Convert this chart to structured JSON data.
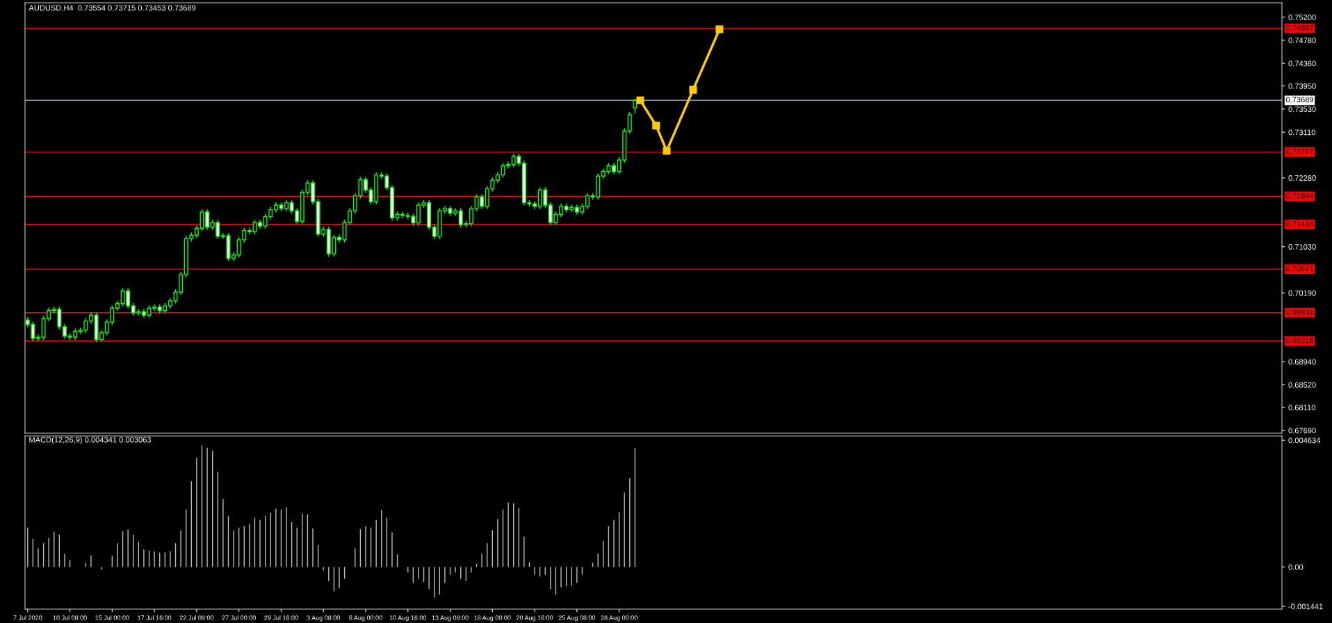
{
  "chart_data": [
    {
      "type": "candlestick",
      "title": "AUDUSD,H4  0.73554 0.73715 0.73453 0.73689",
      "grid": false,
      "color": "#00ff00",
      "categories": [
        null,
        null,
        null,
        null,
        null,
        null,
        null,
        null,
        null,
        null,
        null,
        null,
        null,
        null,
        null,
        null,
        null,
        null,
        null,
        null,
        null,
        null,
        null,
        null,
        null,
        null,
        null,
        null,
        null,
        null,
        null,
        null,
        null,
        null,
        null,
        null,
        null,
        null,
        null,
        null,
        null,
        null,
        null,
        null,
        null,
        null,
        null,
        null,
        null,
        null,
        null,
        null,
        null,
        null,
        null,
        null,
        null,
        null,
        null,
        null,
        null,
        null,
        null,
        null,
        null,
        null,
        null,
        null,
        null,
        null,
        null,
        null,
        null,
        null,
        null,
        null,
        null,
        null,
        null,
        null,
        null,
        null,
        null,
        null,
        null,
        null,
        null,
        null,
        null,
        null,
        null,
        null,
        null,
        null,
        null,
        null,
        null,
        null,
        null,
        null,
        null,
        null,
        null,
        null,
        null,
        null,
        null,
        null,
        null,
        null,
        null,
        null,
        null,
        null,
        null,
        null,
        null,
        null,
        null,
        null,
        null,
        null,
        null,
        null,
        null,
        null,
        null,
        null,
        null,
        null,
        null,
        null,
        null,
        null,
        null,
        null,
        null,
        null,
        null,
        null,
        null,
        null,
        null,
        null,
        null,
        null,
        null,
        null,
        null,
        null,
        null,
        null,
        null,
        null,
        null,
        null,
        null,
        null,
        null,
        null,
        null,
        null,
        null,
        null,
        null,
        null,
        null,
        null,
        null,
        null,
        null,
        null,
        null,
        null,
        null,
        null,
        null,
        null,
        null,
        null,
        null,
        null,
        null,
        null,
        null,
        null,
        null,
        null,
        null,
        null,
        null,
        null,
        null,
        null,
        null,
        null,
        null,
        null,
        null,
        null,
        null,
        null,
        null,
        null,
        null,
        null,
        null,
        null,
        null,
        null,
        null,
        null,
        null,
        null,
        null,
        null,
        null,
        null,
        null,
        null,
        null,
        null,
        null,
        null,
        null,
        null,
        null,
        null,
        null,
        null,
        null,
        null,
        null,
        null,
        null,
        null,
        null,
        null
      ],
      "ohlc": [
        [
          0.697,
          0.6975,
          0.69568,
          0.69618
        ],
        [
          0.69618,
          0.69668,
          0.69315,
          0.69365
        ],
        [
          0.69365,
          0.69436,
          0.69315,
          0.69386
        ],
        [
          0.69386,
          0.69773,
          0.69336,
          0.69723
        ],
        [
          0.69723,
          0.69921,
          0.69673,
          0.69871
        ],
        [
          0.69871,
          0.69942,
          0.69821,
          0.69892
        ],
        [
          0.69892,
          0.69942,
          0.69526,
          0.69576
        ],
        [
          0.69576,
          0.69626,
          0.69357,
          0.69407
        ],
        [
          0.69407,
          0.69457,
          0.69336,
          0.69386
        ],
        [
          0.69386,
          0.69542,
          0.69336,
          0.69492
        ],
        [
          0.69492,
          0.69563,
          0.69442,
          0.69513
        ],
        [
          0.69513,
          0.69731,
          0.69463,
          0.69681
        ],
        [
          0.69681,
          0.69836,
          0.69631,
          0.69786
        ],
        [
          0.69786,
          0.69836,
          0.69294,
          0.69344
        ],
        [
          0.69344,
          0.69521,
          0.69294,
          0.69471
        ],
        [
          0.69471,
          0.6971,
          0.69421,
          0.6966
        ],
        [
          0.6966,
          0.69963,
          0.6961,
          0.69913
        ],
        [
          0.69913,
          0.70047,
          0.69863,
          0.69997
        ],
        [
          0.69997,
          0.70278,
          0.69947,
          0.70228
        ],
        [
          0.70228,
          0.70278,
          0.69905,
          0.69955
        ],
        [
          0.69955,
          0.70005,
          0.69778,
          0.69828
        ],
        [
          0.69828,
          0.69899,
          0.69778,
          0.69849
        ],
        [
          0.69849,
          0.69899,
          0.69736,
          0.69786
        ],
        [
          0.69786,
          0.69963,
          0.69736,
          0.69913
        ],
        [
          0.69913,
          0.69984,
          0.69863,
          0.69934
        ],
        [
          0.69934,
          0.69984,
          0.69821,
          0.69871
        ],
        [
          0.69871,
          0.70005,
          0.69821,
          0.69955
        ],
        [
          0.69955,
          0.70097,
          0.69905,
          0.70047
        ],
        [
          0.70047,
          0.70257,
          0.69997,
          0.70207
        ],
        [
          0.70207,
          0.70573,
          0.70157,
          0.70523
        ],
        [
          0.70523,
          0.71226,
          0.70473,
          0.71176
        ],
        [
          0.71176,
          0.71289,
          0.71126,
          0.71239
        ],
        [
          0.71239,
          0.71415,
          0.71189,
          0.71365
        ],
        [
          0.71365,
          0.7171,
          0.71315,
          0.7166
        ],
        [
          0.7166,
          0.7171,
          0.71336,
          0.71386
        ],
        [
          0.71386,
          0.7152,
          0.71336,
          0.7147
        ],
        [
          0.7147,
          0.7152,
          0.71168,
          0.71218
        ],
        [
          0.71218,
          0.7128,
          0.71168,
          0.7123
        ],
        [
          0.7123,
          0.7128,
          0.70768,
          0.70818
        ],
        [
          0.70818,
          0.70931,
          0.70768,
          0.70881
        ],
        [
          0.70881,
          0.71205,
          0.70831,
          0.71155
        ],
        [
          0.71155,
          0.71373,
          0.71105,
          0.71323
        ],
        [
          0.71323,
          0.71373,
          0.71252,
          0.71302
        ],
        [
          0.71302,
          0.7152,
          0.71252,
          0.7147
        ],
        [
          0.7147,
          0.7152,
          0.71357,
          0.71407
        ],
        [
          0.71407,
          0.71626,
          0.71357,
          0.71576
        ],
        [
          0.71576,
          0.71752,
          0.71526,
          0.71702
        ],
        [
          0.71702,
          0.71836,
          0.71652,
          0.71786
        ],
        [
          0.71786,
          0.71836,
          0.71673,
          0.71723
        ],
        [
          0.71723,
          0.71878,
          0.71673,
          0.71828
        ],
        [
          0.71828,
          0.71878,
          0.71631,
          0.71681
        ],
        [
          0.71681,
          0.71731,
          0.71441,
          0.71491
        ],
        [
          0.71491,
          0.72068,
          0.71441,
          0.72018
        ],
        [
          0.72018,
          0.72236,
          0.71968,
          0.72186
        ],
        [
          0.72186,
          0.72236,
          0.71799,
          0.71849
        ],
        [
          0.71849,
          0.71899,
          0.7121,
          0.7126
        ],
        [
          0.7126,
          0.71394,
          0.7121,
          0.71344
        ],
        [
          0.71344,
          0.71394,
          0.70852,
          0.70902
        ],
        [
          0.70902,
          0.71247,
          0.70852,
          0.71197
        ],
        [
          0.71197,
          0.71247,
          0.71105,
          0.71155
        ],
        [
          0.71155,
          0.7152,
          0.71105,
          0.7147
        ],
        [
          0.7147,
          0.71731,
          0.7142,
          0.71681
        ],
        [
          0.71681,
          0.72004,
          0.71631,
          0.71954
        ],
        [
          0.71954,
          0.72299,
          0.71904,
          0.72249
        ],
        [
          0.72249,
          0.72299,
          0.7201,
          0.7206
        ],
        [
          0.7206,
          0.7211,
          0.71799,
          0.71849
        ],
        [
          0.71849,
          0.72383,
          0.71799,
          0.72333
        ],
        [
          0.72333,
          0.72383,
          0.72262,
          0.72312
        ],
        [
          0.72312,
          0.72362,
          0.72052,
          0.72102
        ],
        [
          0.72102,
          0.72152,
          0.71505,
          0.71555
        ],
        [
          0.71555,
          0.71668,
          0.71505,
          0.71618
        ],
        [
          0.71618,
          0.71668,
          0.71547,
          0.71597
        ],
        [
          0.71597,
          0.71647,
          0.7153,
          0.7158
        ],
        [
          0.7158,
          0.7163,
          0.71412,
          0.71462
        ],
        [
          0.71462,
          0.71836,
          0.71412,
          0.71786
        ],
        [
          0.71786,
          0.71878,
          0.71736,
          0.71828
        ],
        [
          0.71828,
          0.71878,
          0.71336,
          0.71386
        ],
        [
          0.71386,
          0.71436,
          0.71168,
          0.71218
        ],
        [
          0.71218,
          0.71731,
          0.71168,
          0.71681
        ],
        [
          0.71681,
          0.71773,
          0.71631,
          0.71723
        ],
        [
          0.71723,
          0.71773,
          0.71589,
          0.71639
        ],
        [
          0.71639,
          0.71731,
          0.71589,
          0.71681
        ],
        [
          0.71681,
          0.71731,
          0.71378,
          0.71428
        ],
        [
          0.71428,
          0.71499,
          0.71378,
          0.71449
        ],
        [
          0.71449,
          0.71773,
          0.71399,
          0.71723
        ],
        [
          0.71723,
          0.71983,
          0.71673,
          0.71933
        ],
        [
          0.71933,
          0.71983,
          0.71715,
          0.71765
        ],
        [
          0.71765,
          0.72131,
          0.71715,
          0.72081
        ],
        [
          0.72081,
          0.72287,
          0.72031,
          0.72237
        ],
        [
          0.72237,
          0.72383,
          0.72187,
          0.72333
        ],
        [
          0.72333,
          0.72552,
          0.72283,
          0.72502
        ],
        [
          0.72502,
          0.72573,
          0.72452,
          0.72523
        ],
        [
          0.72523,
          0.7272,
          0.72473,
          0.7267
        ],
        [
          0.7267,
          0.7272,
          0.72494,
          0.72544
        ],
        [
          0.72544,
          0.72594,
          0.71778,
          0.71828
        ],
        [
          0.71828,
          0.71878,
          0.71757,
          0.71807
        ],
        [
          0.71807,
          0.71857,
          0.71715,
          0.71765
        ],
        [
          0.71765,
          0.7211,
          0.71715,
          0.7206
        ],
        [
          0.7206,
          0.7211,
          0.71736,
          0.71786
        ],
        [
          0.71786,
          0.71836,
          0.7142,
          0.7147
        ],
        [
          0.7147,
          0.71668,
          0.7142,
          0.71618
        ],
        [
          0.71618,
          0.71815,
          0.71568,
          0.71765
        ],
        [
          0.71765,
          0.71815,
          0.71652,
          0.71702
        ],
        [
          0.71702,
          0.71794,
          0.71652,
          0.71744
        ],
        [
          0.71744,
          0.71794,
          0.7161,
          0.7166
        ],
        [
          0.7166,
          0.71815,
          0.7161,
          0.71765
        ],
        [
          0.71765,
          0.72004,
          0.71715,
          0.71954
        ],
        [
          0.71954,
          0.72004,
          0.71883,
          0.71933
        ],
        [
          0.71933,
          0.72362,
          0.71883,
          0.72312
        ],
        [
          0.72312,
          0.72447,
          0.72262,
          0.72397
        ],
        [
          0.72397,
          0.72552,
          0.72347,
          0.72502
        ],
        [
          0.72502,
          0.72552,
          0.72347,
          0.72397
        ],
        [
          0.72397,
          0.72657,
          0.72347,
          0.72607
        ],
        [
          0.72607,
          0.73183,
          0.72557,
          0.73133
        ],
        [
          0.73133,
          0.73478,
          0.73083,
          0.73428
        ],
        [
          0.73554,
          0.73715,
          0.73453,
          0.73689
        ],
        null,
        null,
        null,
        null,
        null,
        null,
        null,
        null,
        null,
        null,
        null,
        null,
        null,
        null,
        null,
        null,
        null,
        null,
        null,
        null,
        null,
        null,
        null,
        null,
        null,
        null,
        null,
        null,
        null,
        null,
        null,
        null,
        null,
        null,
        null,
        null,
        null,
        null,
        null,
        null,
        null,
        null,
        null,
        null,
        null,
        null,
        null,
        null,
        null,
        null,
        null,
        null,
        null,
        null,
        null,
        null,
        null,
        null,
        null,
        null,
        null,
        null,
        null,
        null,
        null,
        null,
        null,
        null,
        null,
        null,
        null,
        null,
        null,
        null,
        null,
        null,
        null,
        null,
        null,
        null,
        null,
        null,
        null,
        null,
        null,
        null,
        null,
        null,
        null,
        null,
        null,
        null,
        null,
        null,
        null,
        null,
        null,
        null,
        null,
        null,
        null,
        null,
        null,
        null,
        null,
        null,
        null,
        null,
        null,
        null,
        null,
        null,
        null,
        null,
        null,
        null,
        null,
        null,
        null,
        null,
        null,
        null
      ],
      "series": [
        {
          "type": "line",
          "color": "#ffcc00",
          "marker": "square",
          "line_style": "solid",
          "values": [
            null,
            null,
            null,
            null,
            null,
            null,
            null,
            null,
            null,
            null,
            null,
            null,
            null,
            null,
            null,
            null,
            null,
            null,
            null,
            null,
            null,
            null,
            null,
            null,
            null,
            null,
            null,
            null,
            null,
            null,
            null,
            null,
            null,
            null,
            null,
            null,
            null,
            null,
            null,
            null,
            null,
            null,
            null,
            null,
            null,
            null,
            null,
            null,
            null,
            null,
            null,
            null,
            null,
            null,
            null,
            null,
            null,
            null,
            null,
            null,
            null,
            null,
            null,
            null,
            null,
            null,
            null,
            null,
            null,
            null,
            null,
            null,
            null,
            null,
            null,
            null,
            null,
            null,
            null,
            null,
            null,
            null,
            null,
            null,
            null,
            null,
            null,
            null,
            null,
            null,
            null,
            null,
            null,
            null,
            null,
            null,
            null,
            null,
            null,
            null,
            null,
            null,
            null,
            null,
            null,
            null,
            null,
            null,
            null,
            null,
            null,
            null,
            null,
            null,
            null,
            null,
            0.7369,
            null,
            null,
            0.7323,
            null,
            0.7277,
            null,
            null,
            null,
            null,
            0.7388,
            null,
            null,
            null,
            null,
            0.7498,
            null,
            null,
            null,
            null,
            null,
            null,
            null,
            null,
            null,
            null,
            null,
            null,
            null,
            null,
            null,
            null,
            null,
            null,
            null,
            null,
            null,
            null,
            null,
            null,
            null,
            null,
            null,
            null,
            null,
            null,
            null,
            null,
            null,
            null,
            null,
            null,
            null,
            null,
            null,
            null,
            null,
            null,
            null,
            null,
            null,
            null,
            null,
            null,
            null,
            null,
            null,
            null,
            null,
            null,
            null,
            null,
            null,
            null,
            null,
            null,
            null,
            null,
            null,
            null,
            null,
            null,
            null,
            null,
            null,
            null,
            null,
            null,
            null,
            null,
            null,
            null,
            null,
            null,
            null,
            null,
            null,
            null,
            null,
            null,
            null,
            null,
            null,
            null,
            null,
            null,
            null,
            null,
            null,
            null,
            null,
            null,
            null,
            null,
            null,
            null,
            null,
            null,
            null,
            null,
            null,
            null
          ]
        }
      ],
      "ref_lines": [
        {
          "axis": "y",
          "value": 0.74997,
          "label": "0.74997",
          "color": "#ff0000"
        },
        {
          "axis": "y",
          "value": 0.73689,
          "label": "0.73689",
          "color": "#8899aa"
        },
        {
          "axis": "y",
          "value": 0.72747,
          "label": "0.72747",
          "color": "#ff0000"
        },
        {
          "axis": "y",
          "value": 0.71944,
          "label": "0.71944",
          "color": "#ff0000"
        },
        {
          "axis": "y",
          "value": 0.71434,
          "label": "0.71434",
          "color": "#ff0000"
        },
        {
          "axis": "y",
          "value": 0.70621,
          "label": "0.70621",
          "color": "#ff0000"
        },
        {
          "axis": "y",
          "value": 0.69831,
          "label": "0.69831",
          "color": "#ff0000"
        },
        {
          "axis": "y",
          "value": 0.69318,
          "label": "0.69318",
          "color": "#ff0000"
        }
      ],
      "ylim": [
        0.67642,
        0.75461
      ],
      "yticks": [
        {
          "value": 0.752,
          "label": "0.75200"
        },
        {
          "value": 0.7478,
          "label": "0.74780"
        },
        {
          "value": 0.7436,
          "label": "0.74360"
        },
        {
          "value": 0.7395,
          "label": "0.73950"
        },
        {
          "value": 0.7353,
          "label": "0.73530"
        },
        {
          "value": 0.7311,
          "label": "0.73110"
        },
        {
          "value": 0.7228,
          "label": "0.72280"
        },
        {
          "value": 0.7103,
          "label": "0.71030"
        },
        {
          "value": 0.7019,
          "label": "0.70190"
        },
        {
          "value": 0.6894,
          "label": "0.68940"
        },
        {
          "value": 0.6852,
          "label": "0.68520"
        },
        {
          "value": 0.6811,
          "label": "0.68110"
        },
        {
          "value": 0.6769,
          "label": "0.67690"
        }
      ]
    },
    {
      "type": "bar",
      "title": "MACD(12,26,9) 0.004341 0.003063",
      "grid": false,
      "color": "#c0c0c0",
      "categories": [
        "7 Jul 2020",
        null,
        null,
        null,
        null,
        null,
        null,
        null,
        "10 Jul 08:00",
        null,
        null,
        null,
        null,
        null,
        null,
        null,
        "15 Jul 00:00",
        null,
        null,
        null,
        null,
        null,
        null,
        null,
        "17 Jul 16:00",
        null,
        null,
        null,
        null,
        null,
        null,
        null,
        "22 Jul 08:00",
        null,
        null,
        null,
        null,
        null,
        null,
        null,
        "27 Jul 00:00",
        null,
        null,
        null,
        null,
        null,
        null,
        null,
        "29 Jul 16:00",
        null,
        null,
        null,
        null,
        null,
        null,
        null,
        "3 Aug 08:00",
        null,
        null,
        null,
        null,
        null,
        null,
        null,
        "6 Aug 00:00",
        null,
        null,
        null,
        null,
        null,
        null,
        null,
        "10 Aug 16:00",
        null,
        null,
        null,
        null,
        null,
        null,
        null,
        "13 Aug 08:00",
        null,
        null,
        null,
        null,
        null,
        null,
        null,
        "18 Aug 00:00",
        null,
        null,
        null,
        null,
        null,
        null,
        null,
        "20 Aug 16:00",
        null,
        null,
        null,
        null,
        null,
        null,
        null,
        "25 Aug 08:00",
        null,
        null,
        null,
        null,
        null,
        null,
        null,
        "28 Aug 00:00",
        null,
        null,
        null,
        null,
        null,
        null,
        null,
        null,
        null,
        null,
        null,
        null,
        null,
        null,
        null,
        null,
        null,
        null,
        null,
        null,
        null,
        null,
        null,
        null,
        null,
        null,
        null,
        null,
        null,
        null,
        null,
        null,
        null,
        null,
        null,
        null,
        null,
        null,
        null,
        null,
        null,
        null,
        null,
        null,
        null,
        null,
        null,
        null,
        null,
        null,
        null,
        null,
        null,
        null,
        null,
        null,
        null,
        null,
        null,
        null,
        null,
        null,
        null,
        null,
        null,
        null,
        null,
        null,
        null,
        null,
        null,
        null,
        null,
        null,
        null,
        null,
        null,
        null,
        null,
        null,
        null,
        null,
        null,
        null,
        null,
        null,
        null,
        null,
        null,
        null,
        null,
        null,
        null,
        null,
        null,
        null,
        null,
        null,
        null,
        null,
        null,
        null,
        null,
        null,
        null,
        null,
        null,
        null,
        null,
        null,
        null,
        null,
        null,
        null,
        null,
        null,
        null,
        null,
        null,
        null,
        null,
        null,
        null,
        null,
        null
      ],
      "values": [
        0.00144,
        0.00103,
        0.00068,
        0.00087,
        0.00106,
        0.00129,
        0.00118,
        0.00049,
        0.00026,
        0.0,
        0.0,
        0.00015,
        0.00041,
        0.0,
        -0.0001,
        0.0,
        0.00041,
        0.00087,
        0.0013,
        0.00137,
        0.00118,
        0.00092,
        0.00064,
        0.0006,
        0.00057,
        0.00052,
        0.00054,
        0.00057,
        0.00087,
        0.00134,
        0.0021,
        0.00313,
        0.00399,
        0.00444,
        0.00436,
        0.00425,
        0.00348,
        0.00249,
        0.00187,
        0.00134,
        0.00144,
        0.00149,
        0.00157,
        0.0018,
        0.00172,
        0.00187,
        0.00198,
        0.00213,
        0.0021,
        0.00218,
        0.00164,
        0.00144,
        0.00195,
        0.00192,
        0.00141,
        0.0008,
        -0.00012,
        -0.00051,
        -0.00089,
        -0.00077,
        -0.00043,
        0.0,
        0.00068,
        0.00138,
        0.00149,
        0.00144,
        0.00172,
        0.00209,
        0.0018,
        0.00126,
        0.00046,
        0.0,
        -0.0002,
        -0.00058,
        -0.00043,
        -0.00055,
        -0.00081,
        -0.00112,
        -0.00101,
        -0.00058,
        -0.00028,
        -0.0002,
        -0.00043,
        -0.00051,
        -0.0002,
        0.00011,
        0.00049,
        0.00087,
        0.00134,
        0.00175,
        0.0021,
        0.00236,
        0.00233,
        0.00215,
        0.00111,
        0.00018,
        -0.00028,
        -0.00035,
        -0.00028,
        -0.00081,
        -0.00101,
        -0.00074,
        -0.00071,
        -0.00068,
        -0.00058,
        -0.00028,
        0.0,
        0.00015,
        0.00049,
        0.00095,
        0.00149,
        0.00172,
        0.002,
        0.00272,
        0.00325,
        0.00434,
        null,
        null,
        null,
        null,
        null,
        null,
        null,
        null,
        null,
        null,
        null,
        null,
        null,
        null,
        null,
        null,
        null,
        null,
        null,
        null,
        null,
        null,
        null,
        null,
        null,
        null,
        null,
        null,
        null,
        null,
        null,
        null,
        null,
        null,
        null,
        null,
        null,
        null,
        null,
        null,
        null,
        null,
        null,
        null,
        null,
        null,
        null,
        null,
        null,
        null,
        null,
        null,
        null,
        null,
        null,
        null,
        null,
        null,
        null,
        null,
        null,
        null,
        null,
        null,
        null,
        null,
        null,
        null,
        null,
        null,
        null,
        null,
        null,
        null,
        null,
        null,
        null,
        null,
        null,
        null,
        null,
        null,
        null,
        null,
        null,
        null,
        null,
        null,
        null,
        null,
        null,
        null,
        null,
        null,
        null,
        null,
        null,
        null,
        null,
        null,
        null,
        null,
        null,
        null,
        null,
        null,
        null,
        null,
        null,
        null,
        null,
        null,
        null,
        null,
        null,
        null,
        null,
        null,
        null,
        null,
        null,
        null
      ],
      "ylim": [
        -0.00154,
        0.00479
      ],
      "yticks": [
        {
          "value": 0.004634,
          "label": "0.004634"
        },
        {
          "value": 0,
          "label": "0.00"
        },
        {
          "value": -0.001441,
          "label": "-0.001441"
        }
      ]
    }
  ]
}
